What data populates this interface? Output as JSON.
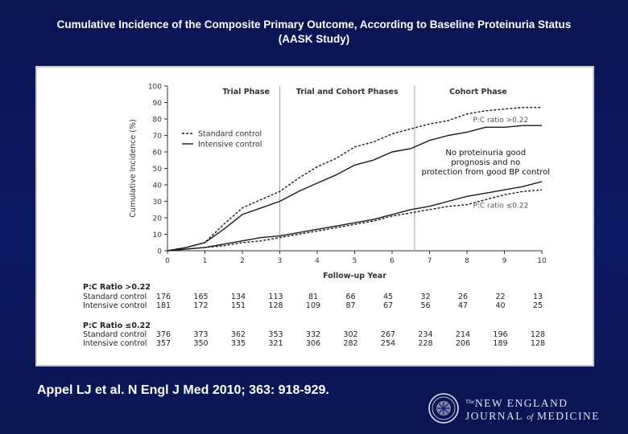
{
  "slide": {
    "title_line1": "Cumulative Incidence of the Composite Primary Outcome, According to Baseline Proteinuria Status",
    "title_line2": "(AASK Study)",
    "citation": "Appel LJ et al. N Engl J Med 2010; 363: 918-929.",
    "journal": {
      "the": "The",
      "line1": "NEW ENGLAND",
      "line2_a": "JOURNAL",
      "line2_of": "of",
      "line2_b": "MEDICINE"
    }
  },
  "chart_data": {
    "type": "line",
    "ylabel": "Cumulative Incidence (%)",
    "xlabel": "Follow-up Year",
    "xlim": [
      0,
      10
    ],
    "ylim": [
      0,
      100
    ],
    "x_ticks": [
      "0",
      "1",
      "2",
      "3",
      "4",
      "5",
      "6",
      "7",
      "8",
      "9",
      "10"
    ],
    "y_ticks": [
      "0",
      "10",
      "20",
      "30",
      "40",
      "50",
      "60",
      "70",
      "80",
      "90",
      "100"
    ],
    "grid": false,
    "phases": [
      {
        "label": "Trial Phase",
        "x": 2.1
      },
      {
        "label": "Trial and Cohort Phases",
        "x": 4.8
      },
      {
        "label": "Cohort Phase",
        "x": 8.3
      }
    ],
    "phase_dividers": [
      3.0,
      6.6
    ],
    "legend": {
      "placement": "upper-left",
      "entries": [
        {
          "label": "Standard control",
          "style": "dashed"
        },
        {
          "label": "Intensive control",
          "style": "solid"
        }
      ]
    },
    "series": [
      {
        "name": "Standard control",
        "group": "P:C ratio >0.22",
        "style": "dashed",
        "x": [
          0,
          0.5,
          1,
          1.5,
          2,
          2.5,
          3,
          3.5,
          4,
          4.5,
          5,
          5.5,
          6,
          6.5,
          7,
          7.5,
          8,
          8.5,
          9,
          9.5,
          10
        ],
        "y": [
          0,
          2,
          5,
          16,
          26,
          31,
          36,
          44,
          51,
          56,
          63,
          66,
          71,
          74,
          77,
          79,
          83,
          85,
          86,
          87,
          87
        ]
      },
      {
        "name": "Intensive control",
        "group": "P:C ratio >0.22",
        "style": "solid",
        "x": [
          0,
          0.5,
          1,
          1.5,
          2,
          2.5,
          3,
          3.5,
          4,
          4.5,
          5,
          5.5,
          6,
          6.5,
          7,
          7.5,
          8,
          8.5,
          9,
          9.5,
          10
        ],
        "y": [
          0,
          2,
          5,
          13,
          22,
          26,
          30,
          36,
          41,
          46,
          52,
          55,
          60,
          62,
          67,
          70,
          72,
          75,
          75,
          76,
          76
        ]
      },
      {
        "name": "Standard control",
        "group": "P:C ratio ≤0.22",
        "style": "dashed",
        "x": [
          0,
          0.5,
          1,
          1.5,
          2,
          2.5,
          3,
          3.5,
          4,
          4.5,
          5,
          5.5,
          6,
          6.5,
          7,
          7.5,
          8,
          8.5,
          9,
          9.5,
          10
        ],
        "y": [
          0,
          1,
          2,
          3,
          5,
          6,
          8,
          10,
          12,
          14,
          16,
          18,
          21,
          23,
          25,
          27,
          28,
          31,
          34,
          36,
          37
        ]
      },
      {
        "name": "Intensive control",
        "group": "P:C ratio ≤0.22",
        "style": "solid",
        "x": [
          0,
          0.5,
          1,
          1.5,
          2,
          2.5,
          3,
          3.5,
          4,
          4.5,
          5,
          5.5,
          6,
          6.5,
          7,
          7.5,
          8,
          8.5,
          9,
          9.5,
          10
        ],
        "y": [
          0,
          1,
          2,
          4,
          6,
          8,
          9,
          11,
          13,
          15,
          17,
          19,
          22,
          25,
          27,
          30,
          33,
          35,
          37,
          39,
          42
        ]
      }
    ],
    "annotations": [
      {
        "text": "P:C ratio >0.22",
        "x": 8.9,
        "y": 78
      },
      {
        "text": "P:C ratio ≤0.22",
        "x": 8.9,
        "y": 26
      },
      {
        "text_lines": [
          "No proteinuria good",
          "prognosis and no",
          "protection from good BP control"
        ],
        "x": 8.5,
        "y": 58
      }
    ],
    "at_risk_table": {
      "groups": [
        {
          "header": "P:C Ratio >0.22",
          "rows": [
            {
              "label": "Standard control",
              "values": [
                176,
                165,
                134,
                113,
                81,
                66,
                45,
                32,
                26,
                22,
                13
              ]
            },
            {
              "label": "Intensive control",
              "values": [
                181,
                172,
                151,
                128,
                109,
                87,
                67,
                56,
                47,
                40,
                25
              ]
            }
          ]
        },
        {
          "header": "P:C Ratio ≤0.22",
          "rows": [
            {
              "label": "Standard control",
              "values": [
                376,
                373,
                362,
                353,
                332,
                302,
                267,
                234,
                214,
                196,
                128
              ]
            },
            {
              "label": "Intensive control",
              "values": [
                357,
                350,
                335,
                321,
                306,
                282,
                254,
                228,
                206,
                189,
                128
              ]
            }
          ]
        }
      ]
    }
  }
}
